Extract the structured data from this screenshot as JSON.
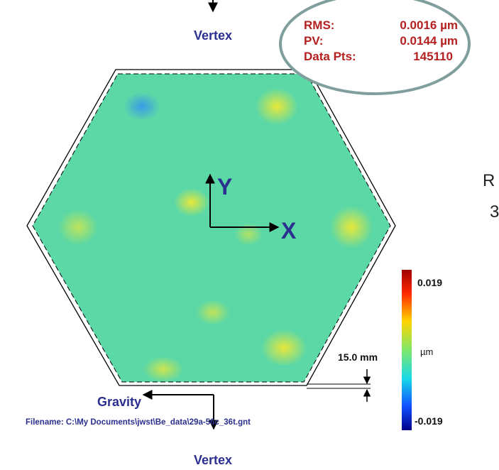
{
  "figure": {
    "top_label": "Vertex",
    "stats": {
      "rms_label": "RMS:",
      "rms_value": "0.0016 µm",
      "pv_label": "PV:",
      "pv_value": "0.0144 µm",
      "pts_label": "Data Pts:",
      "pts_value": "145110"
    },
    "axes": {
      "y": "Y",
      "x": "X"
    },
    "colorbar": {
      "max": "0.019",
      "unit": "µm",
      "min": "-0.019"
    },
    "dimension": "15.0 mm",
    "gravity": "Gravity",
    "filename": "Filename: C:\\My Documents\\jwst\\Be_data\\29a-56c_36t.gnt",
    "bottom_label": "Vertex",
    "side_text": [
      "R",
      "3"
    ]
  }
}
